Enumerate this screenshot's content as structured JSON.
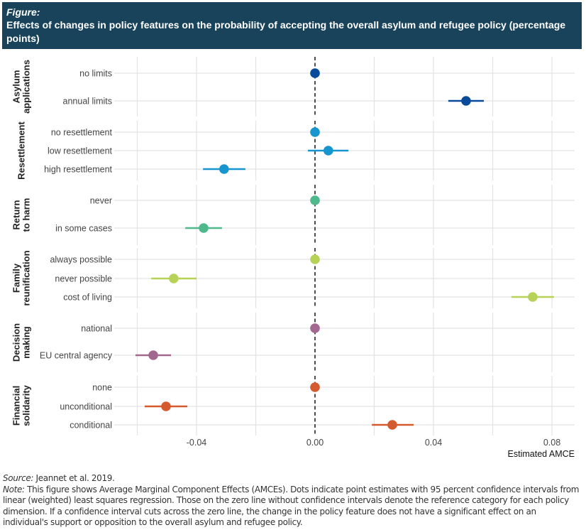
{
  "header": {
    "kicker": "Figure:",
    "title": "Effects of changes in policy  features on the probability of accepting the overall asylum and refugee policy (percentage points)"
  },
  "chart_data": {
    "type": "scatter",
    "subtype": "coefficient-plot-with-confidence-intervals",
    "xlabel": "Estimated AMCE",
    "ylabel": "",
    "xlim": [
      -0.0615,
      0.0875
    ],
    "xticks": [
      -0.04,
      0.0,
      0.04,
      0.08
    ],
    "xtick_labels": [
      "-0.04",
      "0.00",
      "0.04",
      "0.08"
    ],
    "minor_gridlines": [
      -0.06,
      -0.02,
      0.02,
      0.06
    ],
    "reference_line": {
      "x": 0,
      "style": "dashed"
    },
    "grid": true,
    "legend": "none",
    "facets": [
      {
        "name": "Asylum applications",
        "label_lines": [
          "Asylum",
          "applications"
        ],
        "color": "#0a4a9a",
        "levels": [
          {
            "label": "no limits",
            "estimate": 0.0,
            "lower": null,
            "upper": null
          },
          {
            "label": "annual limits",
            "estimate": 0.051,
            "lower": 0.045,
            "upper": 0.057
          }
        ]
      },
      {
        "name": "Resettlement",
        "label_lines": [
          "Resettlement"
        ],
        "color": "#1795cf",
        "levels": [
          {
            "label": "no resettlement",
            "estimate": 0.0,
            "lower": null,
            "upper": null
          },
          {
            "label": "low resettlement",
            "estimate": 0.0045,
            "lower": -0.0024,
            "upper": 0.0113
          },
          {
            "label": "high resettlement",
            "estimate": -0.0307,
            "lower": -0.0378,
            "upper": -0.0235
          }
        ]
      },
      {
        "name": "Return to harm",
        "label_lines": [
          "Return",
          "to harm"
        ],
        "color": "#4fb98c",
        "levels": [
          {
            "label": "never",
            "estimate": 0.0,
            "lower": null,
            "upper": null
          },
          {
            "label": "in some cases",
            "estimate": -0.0376,
            "lower": -0.0438,
            "upper": -0.0314
          }
        ]
      },
      {
        "name": "Family reunification",
        "label_lines": [
          "Family",
          "reunification"
        ],
        "color": "#b6d257",
        "levels": [
          {
            "label": "always possible",
            "estimate": 0.0,
            "lower": null,
            "upper": null
          },
          {
            "label": "never possible",
            "estimate": -0.0477,
            "lower": -0.0553,
            "upper": -0.04
          },
          {
            "label": "cost of living",
            "estimate": 0.0735,
            "lower": 0.0663,
            "upper": 0.0807
          }
        ]
      },
      {
        "name": "Decision making",
        "label_lines": [
          "Decision",
          "making"
        ],
        "color": "#a3688f",
        "levels": [
          {
            "label": "national",
            "estimate": 0.0,
            "lower": null,
            "upper": null
          },
          {
            "label": "EU central agency",
            "estimate": -0.0546,
            "lower": -0.0606,
            "upper": -0.0486
          }
        ]
      },
      {
        "name": "Financial solidarity",
        "label_lines": [
          "Financial",
          "solidarity"
        ],
        "color": "#d45a2f",
        "levels": [
          {
            "label": "none",
            "estimate": 0.0,
            "lower": null,
            "upper": null
          },
          {
            "label": "unconditional",
            "estimate": -0.0503,
            "lower": -0.0575,
            "upper": -0.0431
          },
          {
            "label": "conditional",
            "estimate": 0.0261,
            "lower": 0.0192,
            "upper": 0.0333
          }
        ]
      }
    ]
  },
  "footer": {
    "source_label": "Source:",
    "source_text": " Jeannet et al. 2019.",
    "note_label": "Note:",
    "note_text": " This figure shows Average Marginal Component Effects (AMCEs). Dots indicate point estimates with 95 percent confidence intervals from linear (weighted) least squares regression. Those on the zero line without confidence intervals denote the reference category for each policy dimension. If a confidence interval cuts across the zero line, the change in the policy feature does not have a significant effect on an individual's support or opposition to the overall asylum and refugee policy."
  }
}
